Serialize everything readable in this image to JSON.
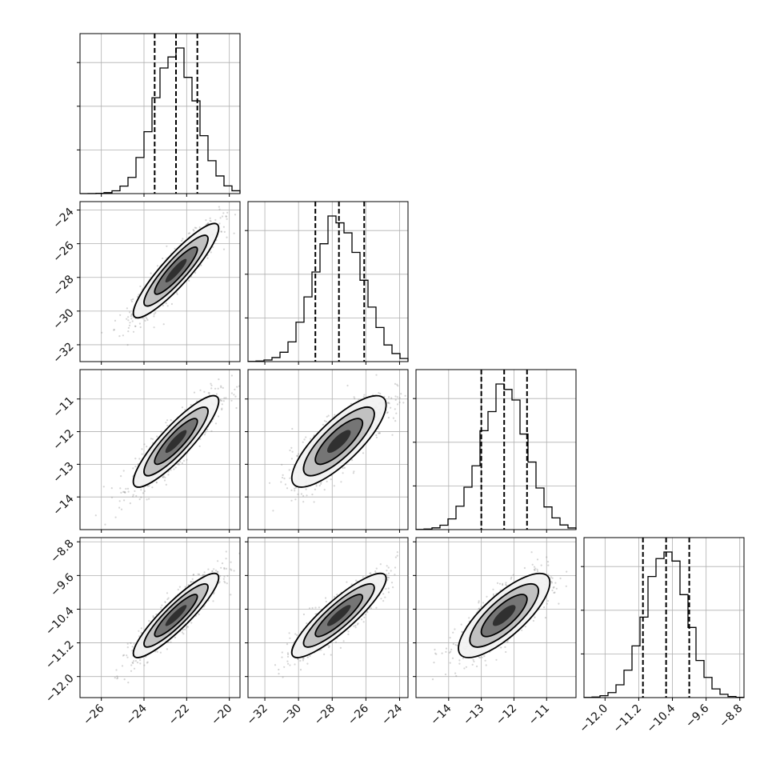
{
  "chart_data": {
    "type": "corner",
    "parameters": [
      {
        "range": [
          -27,
          -19.5
        ],
        "ticks": [
          -26,
          -24,
          -22,
          -20
        ],
        "tick_labels": [
          "−26",
          "−24",
          "−22",
          "−20"
        ],
        "mean": -22.5,
        "sd": 1.0,
        "quantiles": [
          -23.5,
          -22.5,
          -21.5
        ]
      },
      {
        "range": [
          -33,
          -23.5
        ],
        "ticks": [
          -32,
          -30,
          -28,
          -26,
          -24
        ],
        "tick_labels": [
          "−32",
          "−30",
          "−28",
          "−26",
          "−24"
        ],
        "mean": -27.6,
        "sd": 1.4,
        "quantiles": [
          -29.0,
          -27.6,
          -26.1
        ]
      },
      {
        "range": [
          -15,
          -10.1
        ],
        "ticks": [
          -14,
          -13,
          -12,
          -11
        ],
        "tick_labels": [
          "−14",
          "−13",
          "−12",
          "−11"
        ],
        "mean": -12.3,
        "sd": 0.7,
        "quantiles": [
          -13.0,
          -12.3,
          -11.6
        ]
      },
      {
        "range": [
          -12.5,
          -8.7
        ],
        "ticks": [
          -12.0,
          -11.2,
          -10.4,
          -9.6,
          -8.8
        ],
        "tick_labels": [
          "−12.0",
          "−11.2",
          "−10.4",
          "−9.6",
          "−8.8"
        ],
        "mean": -10.55,
        "sd": 0.5,
        "quantiles": [
          -11.1,
          -10.55,
          -10.0
        ]
      }
    ],
    "correlations": {
      "1-0": 0.9,
      "2-0": 0.88,
      "2-1": 0.8,
      "3-0": 0.9,
      "3-1": 0.88,
      "3-2": 0.78
    },
    "histogram_bins": 20,
    "grid": true
  },
  "colors": {
    "points": "#888888",
    "density": "#000000",
    "lines": "#000000"
  }
}
